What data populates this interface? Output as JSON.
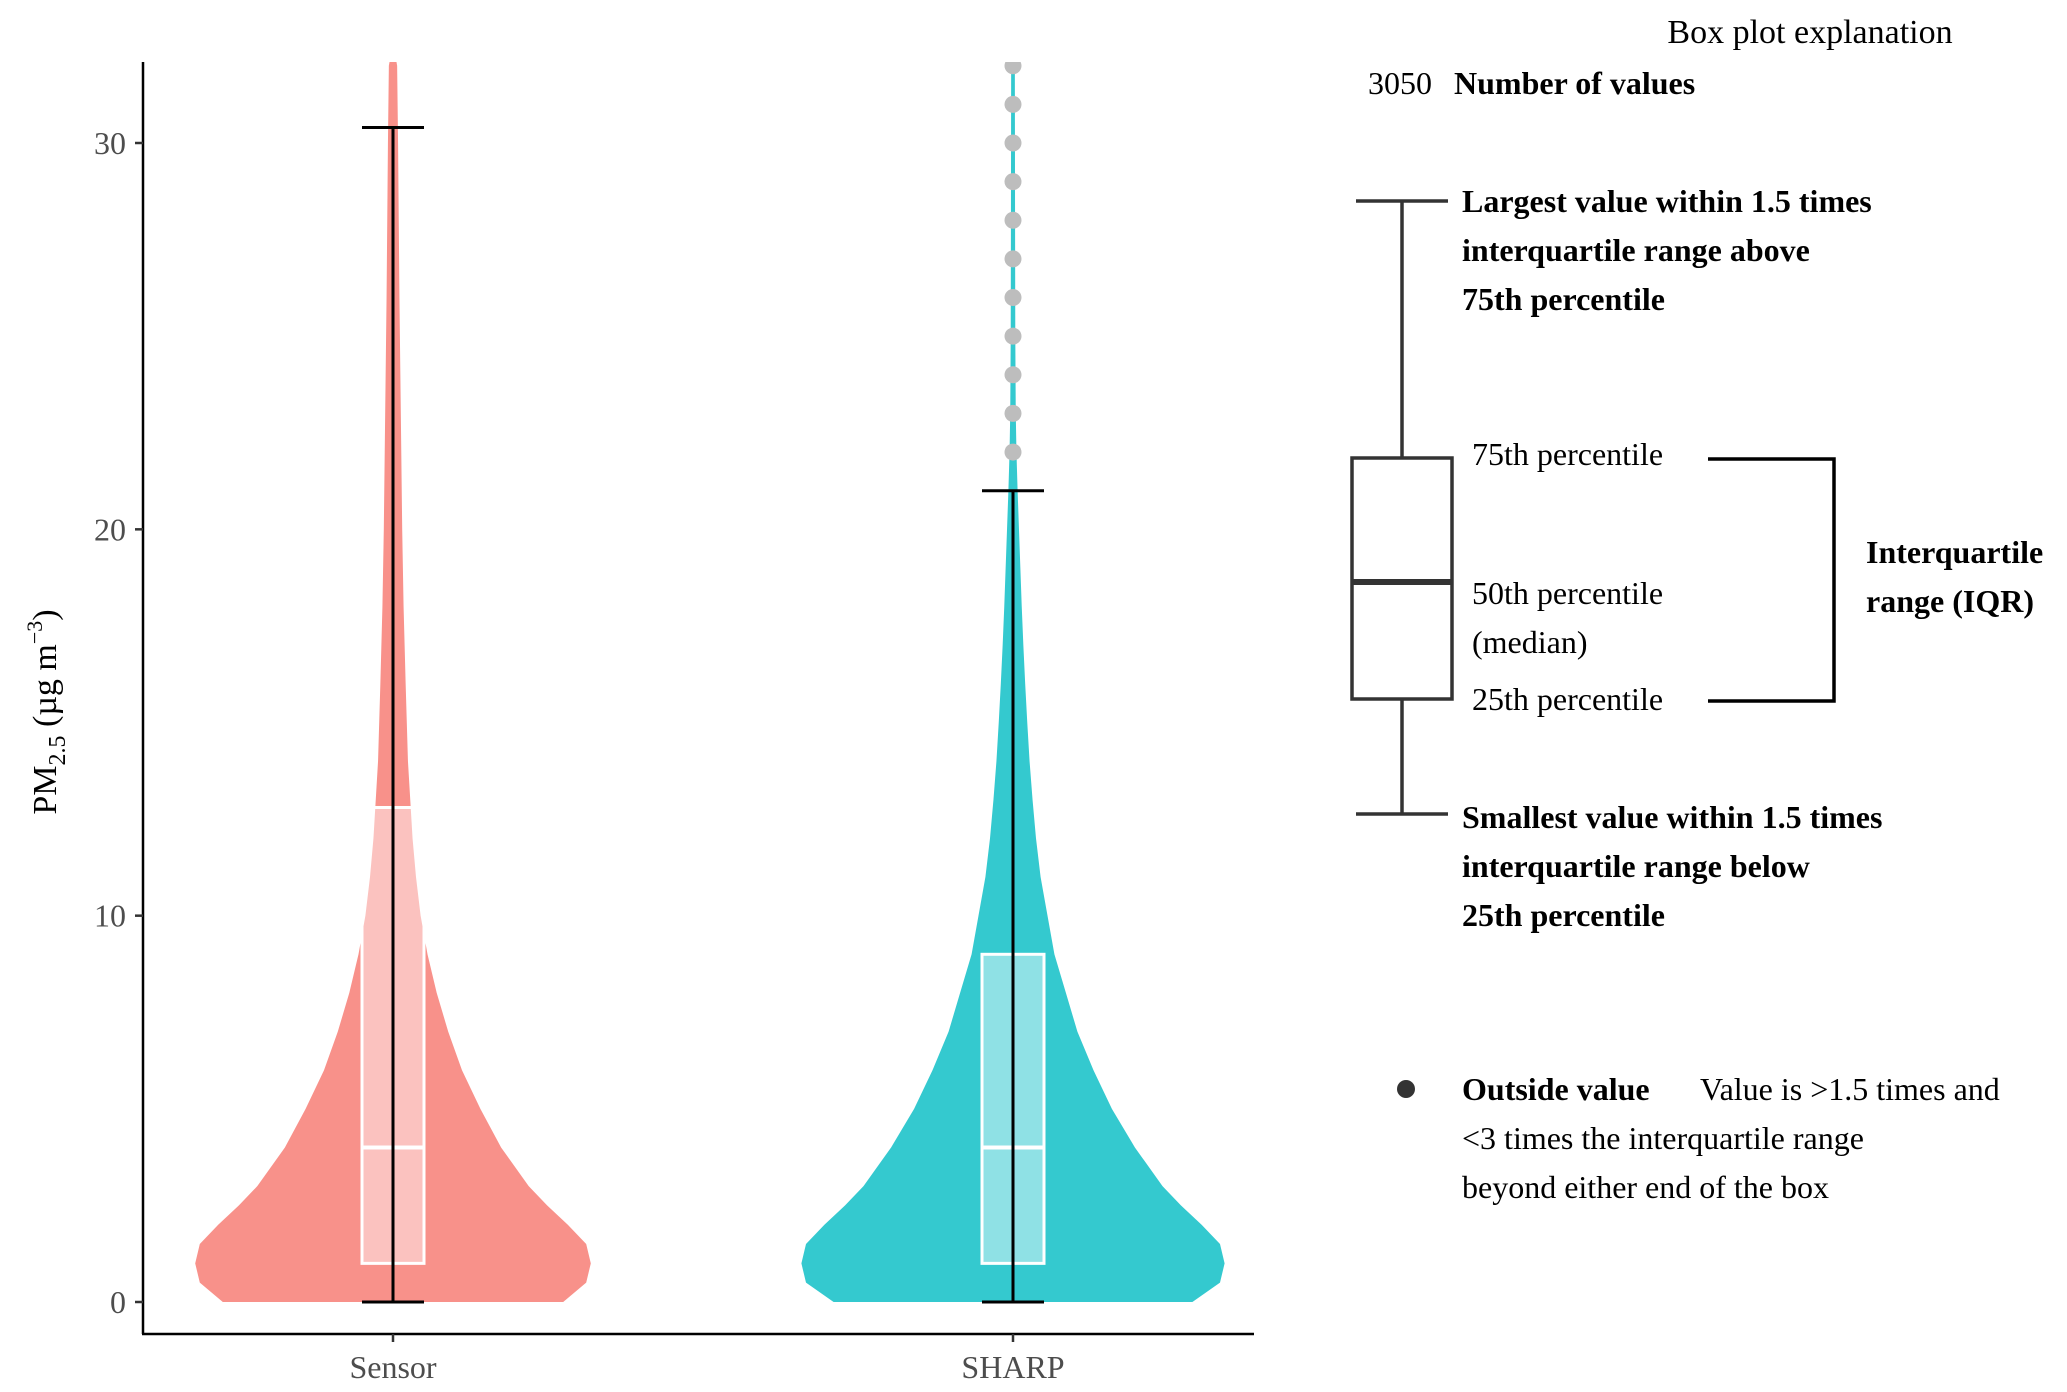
{
  "chart_data": {
    "type": "violin",
    "ylabel": "PM2.5 (µg m−3)",
    "ylabel_parts": {
      "main": "PM",
      "sub": "2.5",
      "units_open": " (µg m",
      "sup": "−3",
      "units_close": ")"
    },
    "ylim": [
      0,
      32
    ],
    "yticks": [
      0,
      10,
      20,
      30
    ],
    "categories": [
      "Sensor",
      "SHARP"
    ],
    "series": [
      {
        "name": "Sensor",
        "color": "#F8918A",
        "box": {
          "q1": 1.0,
          "median": 4.0,
          "q3": 12.8,
          "whisker_low": 0.0,
          "whisker_high": 30.4
        },
        "outliers": [],
        "density": [
          [
            0,
            0.74
          ],
          [
            0.5,
            0.84
          ],
          [
            1.0,
            0.86
          ],
          [
            1.5,
            0.84
          ],
          [
            2.0,
            0.76
          ],
          [
            2.5,
            0.67
          ],
          [
            3.0,
            0.59
          ],
          [
            4.0,
            0.47
          ],
          [
            5.0,
            0.38
          ],
          [
            6.0,
            0.3
          ],
          [
            7.0,
            0.24
          ],
          [
            8.0,
            0.19
          ],
          [
            9.0,
            0.15
          ],
          [
            10.0,
            0.12
          ],
          [
            11.0,
            0.1
          ],
          [
            12.0,
            0.085
          ],
          [
            13.0,
            0.075
          ],
          [
            14.0,
            0.065
          ],
          [
            16.0,
            0.055
          ],
          [
            18.0,
            0.046
          ],
          [
            20.0,
            0.04
          ],
          [
            22.0,
            0.036
          ],
          [
            24.0,
            0.032
          ],
          [
            26.0,
            0.028
          ],
          [
            28.0,
            0.025
          ],
          [
            30.0,
            0.022
          ],
          [
            32.0,
            0.018
          ]
        ]
      },
      {
        "name": "SHARP",
        "color": "#34C9CF",
        "box": {
          "q1": 1.0,
          "median": 4.0,
          "q3": 9.0,
          "whisker_low": 0.0,
          "whisker_high": 21.0
        },
        "outliers": [
          22,
          23,
          24,
          25,
          26,
          27,
          28,
          29,
          30,
          31,
          32
        ],
        "density": [
          [
            0,
            0.78
          ],
          [
            0.5,
            0.9
          ],
          [
            1.0,
            0.92
          ],
          [
            1.5,
            0.9
          ],
          [
            2.0,
            0.82
          ],
          [
            2.5,
            0.73
          ],
          [
            3.0,
            0.65
          ],
          [
            4.0,
            0.53
          ],
          [
            5.0,
            0.43
          ],
          [
            6.0,
            0.35
          ],
          [
            7.0,
            0.28
          ],
          [
            8.0,
            0.23
          ],
          [
            9.0,
            0.18
          ],
          [
            10.0,
            0.15
          ],
          [
            11.0,
            0.12
          ],
          [
            12.0,
            0.1
          ],
          [
            13.0,
            0.085
          ],
          [
            14.0,
            0.072
          ],
          [
            15.0,
            0.062
          ],
          [
            16.0,
            0.053
          ],
          [
            17.0,
            0.045
          ],
          [
            18.0,
            0.038
          ],
          [
            19.0,
            0.032
          ],
          [
            20.0,
            0.026
          ],
          [
            21.0,
            0.02
          ],
          [
            22.0,
            0.015
          ],
          [
            23.0,
            0.012
          ],
          [
            25.0,
            0.01
          ],
          [
            28.0,
            0.009
          ],
          [
            32.0,
            0.008
          ]
        ]
      }
    ],
    "box_fill": "rgba(255,255,255,0.45)",
    "box_stroke": "#ffffff",
    "outlier_color": "#BDBDBD"
  },
  "legend": {
    "title": "Box plot explanation",
    "count_value": "3050",
    "count_label": "Number of values",
    "upper_whisker_lines": [
      "Largest value within 1.5 times",
      "interquartile range above",
      "75th percentile"
    ],
    "p75": "75th percentile",
    "p50_lines": [
      "50th percentile",
      "(median)"
    ],
    "p25": "25th percentile",
    "iqr_lines": [
      "Interquartile",
      "range (IQR)"
    ],
    "lower_whisker_lines": [
      "Smallest value within 1.5 times",
      "interquartile range below",
      "25th percentile"
    ],
    "outside_label": "Outside value",
    "outside_desc_lines": [
      "Value is >1.5 times and",
      "<3 times the interquartile range",
      "beyond either end of the box"
    ]
  }
}
